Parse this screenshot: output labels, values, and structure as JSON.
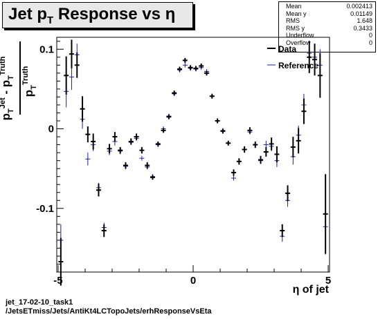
{
  "chart_data": {
    "type": "scatter",
    "title": "Jet pT Response vs η",
    "xlabel": "η of jet",
    "ylabel": "(pT^Jet - pT^Truth) / pT^Truth",
    "xlim": [
      -5.05,
      5.05
    ],
    "ylim": [
      -0.18,
      0.115
    ],
    "x_ticks": [
      -5,
      0,
      5
    ],
    "y_ticks": [
      -0.1,
      0,
      0.1
    ],
    "tick_labels_x": [
      "-5",
      "0",
      "5"
    ],
    "tick_labels_y": [
      "-0.1",
      "0",
      "0.1"
    ],
    "legend_placement": "top-right",
    "series": [
      {
        "name": "Data",
        "color": "#000000",
        "points": [
          {
            "x": -4.9,
            "y": -0.167,
            "yerr": 0.03
          },
          {
            "x": -4.7,
            "y": 0.067,
            "yerr": 0.024
          },
          {
            "x": -4.5,
            "y": 0.094,
            "yerr": 0.018
          },
          {
            "x": -4.3,
            "y": 0.08,
            "yerr": 0.016
          },
          {
            "x": -4.1,
            "y": 0.025,
            "yerr": 0.016
          },
          {
            "x": -3.9,
            "y": -0.007,
            "yerr": 0.01
          },
          {
            "x": -3.7,
            "y": -0.016,
            "yerr": 0.01
          },
          {
            "x": -3.5,
            "y": -0.077,
            "yerr": 0.008
          },
          {
            "x": -3.3,
            "y": -0.128,
            "yerr": 0.008
          },
          {
            "x": -3.1,
            "y": -0.025,
            "yerr": 0.006
          },
          {
            "x": -2.9,
            "y": -0.01,
            "yerr": 0.006
          },
          {
            "x": -2.7,
            "y": -0.027,
            "yerr": 0.004
          },
          {
            "x": -2.5,
            "y": -0.046,
            "yerr": 0.004
          },
          {
            "x": -2.3,
            "y": -0.016,
            "yerr": 0.004
          },
          {
            "x": -2.1,
            "y": -0.01,
            "yerr": 0.004
          },
          {
            "x": -1.9,
            "y": -0.027,
            "yerr": 0.004
          },
          {
            "x": -1.7,
            "y": -0.046,
            "yerr": 0.004
          },
          {
            "x": -1.5,
            "y": -0.061,
            "yerr": 0.003
          },
          {
            "x": -1.3,
            "y": -0.019,
            "yerr": 0.003
          },
          {
            "x": -1.1,
            "y": -0.002,
            "yerr": 0.003
          },
          {
            "x": -0.9,
            "y": 0.015,
            "yerr": 0.003
          },
          {
            "x": -0.7,
            "y": 0.045,
            "yerr": 0.003
          },
          {
            "x": -0.5,
            "y": 0.075,
            "yerr": 0.003
          },
          {
            "x": -0.3,
            "y": 0.086,
            "yerr": 0.003
          },
          {
            "x": -0.1,
            "y": 0.077,
            "yerr": 0.003
          },
          {
            "x": 0.1,
            "y": 0.076,
            "yerr": 0.003
          },
          {
            "x": 0.3,
            "y": 0.079,
            "yerr": 0.003
          },
          {
            "x": 0.5,
            "y": 0.07,
            "yerr": 0.003
          },
          {
            "x": 0.7,
            "y": 0.041,
            "yerr": 0.003
          },
          {
            "x": 0.9,
            "y": 0.01,
            "yerr": 0.003
          },
          {
            "x": 1.1,
            "y": -0.003,
            "yerr": 0.003
          },
          {
            "x": 1.3,
            "y": -0.018,
            "yerr": 0.003
          },
          {
            "x": 1.5,
            "y": -0.055,
            "yerr": 0.004
          },
          {
            "x": 1.7,
            "y": -0.041,
            "yerr": 0.004
          },
          {
            "x": 1.9,
            "y": -0.026,
            "yerr": 0.004
          },
          {
            "x": 2.1,
            "y": -0.002,
            "yerr": 0.004
          },
          {
            "x": 2.3,
            "y": -0.02,
            "yerr": 0.004
          },
          {
            "x": 2.5,
            "y": -0.039,
            "yerr": 0.005
          },
          {
            "x": 2.7,
            "y": -0.029,
            "yerr": 0.006
          },
          {
            "x": 2.9,
            "y": -0.019,
            "yerr": 0.008
          },
          {
            "x": 3.1,
            "y": -0.032,
            "yerr": 0.01
          },
          {
            "x": 3.3,
            "y": -0.128,
            "yerr": 0.008
          },
          {
            "x": 3.5,
            "y": -0.081,
            "yerr": 0.01
          },
          {
            "x": 3.7,
            "y": -0.023,
            "yerr": 0.013
          },
          {
            "x": 3.9,
            "y": -0.015,
            "yerr": 0.016
          },
          {
            "x": 4.1,
            "y": 0.022,
            "yerr": 0.016
          },
          {
            "x": 4.3,
            "y": 0.09,
            "yerr": 0.02
          },
          {
            "x": 4.5,
            "y": 0.087,
            "yerr": 0.02
          },
          {
            "x": 4.7,
            "y": 0.067,
            "yerr": 0.028
          },
          {
            "x": 4.9,
            "y": -0.107,
            "yerr": 0.05
          }
        ]
      },
      {
        "name": "Reference",
        "color": "#1a1aa8",
        "points": [
          {
            "x": -4.9,
            "y": -0.14,
            "yerr": 0.02
          },
          {
            "x": -4.7,
            "y": 0.047,
            "yerr": 0.02
          },
          {
            "x": -4.5,
            "y": 0.065,
            "yerr": 0.016
          },
          {
            "x": -4.3,
            "y": 0.093,
            "yerr": 0.014
          },
          {
            "x": -4.1,
            "y": 0.012,
            "yerr": 0.012
          },
          {
            "x": -3.9,
            "y": -0.038,
            "yerr": 0.008
          },
          {
            "x": -3.7,
            "y": -0.02,
            "yerr": 0.008
          },
          {
            "x": -3.5,
            "y": -0.074,
            "yerr": 0.006
          },
          {
            "x": -3.3,
            "y": -0.124,
            "yerr": 0.006
          },
          {
            "x": -3.1,
            "y": -0.028,
            "yerr": 0.005
          },
          {
            "x": -2.9,
            "y": -0.016,
            "yerr": 0.005
          },
          {
            "x": -2.7,
            "y": -0.028,
            "yerr": 0.004
          },
          {
            "x": -2.5,
            "y": -0.047,
            "yerr": 0.004
          },
          {
            "x": -2.3,
            "y": -0.017,
            "yerr": 0.003
          },
          {
            "x": -2.1,
            "y": -0.012,
            "yerr": 0.003
          },
          {
            "x": -1.9,
            "y": -0.037,
            "yerr": 0.003
          },
          {
            "x": -1.7,
            "y": -0.048,
            "yerr": 0.003
          },
          {
            "x": -1.5,
            "y": -0.06,
            "yerr": 0.003
          },
          {
            "x": -1.3,
            "y": -0.02,
            "yerr": 0.003
          },
          {
            "x": -1.1,
            "y": 0.0,
            "yerr": 0.003
          },
          {
            "x": -0.9,
            "y": 0.016,
            "yerr": 0.003
          },
          {
            "x": -0.7,
            "y": 0.044,
            "yerr": 0.003
          },
          {
            "x": -0.5,
            "y": 0.074,
            "yerr": 0.003
          },
          {
            "x": -0.3,
            "y": 0.08,
            "yerr": 0.003
          },
          {
            "x": -0.1,
            "y": 0.076,
            "yerr": 0.003
          },
          {
            "x": 0.1,
            "y": 0.075,
            "yerr": 0.003
          },
          {
            "x": 0.3,
            "y": 0.077,
            "yerr": 0.003
          },
          {
            "x": 0.5,
            "y": 0.072,
            "yerr": 0.003
          },
          {
            "x": 0.7,
            "y": 0.041,
            "yerr": 0.003
          },
          {
            "x": 0.9,
            "y": 0.01,
            "yerr": 0.003
          },
          {
            "x": 1.1,
            "y": -0.002,
            "yerr": 0.003
          },
          {
            "x": 1.3,
            "y": -0.018,
            "yerr": 0.003
          },
          {
            "x": 1.5,
            "y": -0.062,
            "yerr": 0.003
          },
          {
            "x": 1.7,
            "y": -0.041,
            "yerr": 0.003
          },
          {
            "x": 1.9,
            "y": -0.026,
            "yerr": 0.003
          },
          {
            "x": 2.1,
            "y": -0.004,
            "yerr": 0.003
          },
          {
            "x": 2.3,
            "y": -0.02,
            "yerr": 0.004
          },
          {
            "x": 2.5,
            "y": -0.04,
            "yerr": 0.004
          },
          {
            "x": 2.7,
            "y": -0.02,
            "yerr": 0.005
          },
          {
            "x": 2.9,
            "y": -0.022,
            "yerr": 0.006
          },
          {
            "x": 3.1,
            "y": -0.04,
            "yerr": 0.008
          },
          {
            "x": 3.3,
            "y": -0.135,
            "yerr": 0.007
          },
          {
            "x": 3.5,
            "y": -0.09,
            "yerr": 0.008
          },
          {
            "x": 3.7,
            "y": -0.035,
            "yerr": 0.01
          },
          {
            "x": 3.9,
            "y": -0.008,
            "yerr": 0.012
          },
          {
            "x": 4.1,
            "y": 0.03,
            "yerr": 0.014
          },
          {
            "x": 4.3,
            "y": 0.095,
            "yerr": 0.016
          },
          {
            "x": 4.5,
            "y": 0.09,
            "yerr": 0.016
          },
          {
            "x": 4.7,
            "y": 0.08,
            "yerr": 0.02
          },
          {
            "x": 4.9,
            "y": -0.123,
            "yerr": 0.035
          }
        ]
      }
    ]
  },
  "stats": [
    {
      "label": "Mean",
      "value": "0.002413"
    },
    {
      "label": "Mean y",
      "value": "0.01149"
    },
    {
      "label": "RMS",
      "value": "1.648"
    },
    {
      "label": "RMS y",
      "value": "0.3433"
    },
    {
      "label": "Underflow",
      "value": "0"
    },
    {
      "label": "Overflow",
      "value": "0"
    }
  ],
  "title_box": {
    "main": "Jet p",
    "sub": "T",
    "rest": " Response vs  η"
  },
  "legend": {
    "data_label": "Data",
    "reference_label": "Reference"
  },
  "axis": {
    "xlabel": "η of jet"
  },
  "footer": {
    "line1": "jet_17-02-10_task1",
    "line2": "/JetsETmiss/Jets/AntiKt4LCTopoJets/erhResponseVsEta"
  }
}
